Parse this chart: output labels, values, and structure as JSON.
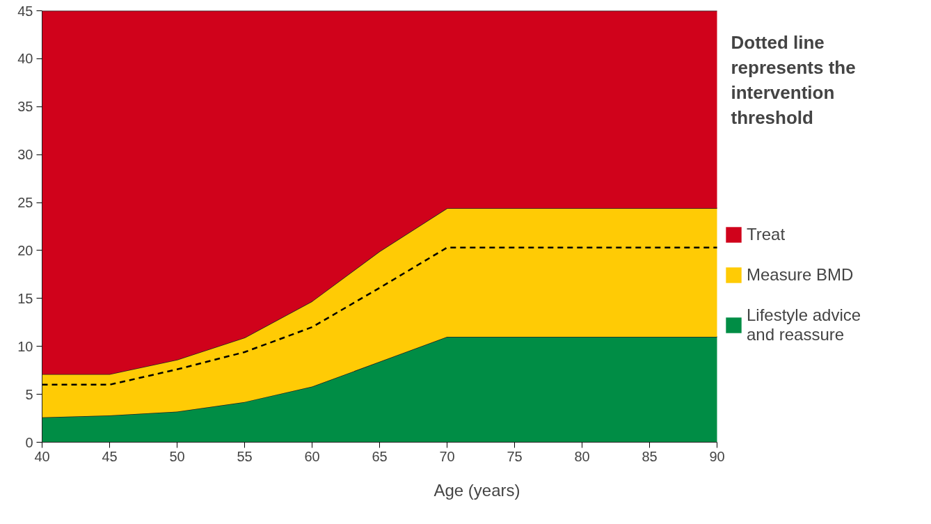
{
  "chart_data": {
    "type": "area",
    "stacked": true,
    "xlabel": "Age (years)",
    "x": [
      40,
      45,
      50,
      55,
      60,
      65,
      70,
      75,
      80,
      85,
      90
    ],
    "series": [
      {
        "name": "Lifestyle advice and reassure",
        "color": "#008d45",
        "values": [
          2.6,
          2.8,
          3.2,
          4.2,
          5.8,
          8.4,
          11.0,
          11.0,
          11.0,
          11.0,
          11.0
        ]
      },
      {
        "name": "Measure BMD",
        "color": "#ffcb05",
        "values": [
          4.5,
          4.3,
          5.4,
          6.7,
          8.9,
          11.5,
          13.4,
          13.4,
          13.4,
          13.4,
          13.4
        ]
      },
      {
        "name": "Treat",
        "color": "#d0021b",
        "values": [
          37.9,
          37.9,
          36.4,
          34.1,
          30.3,
          25.1,
          20.6,
          20.6,
          20.6,
          20.6,
          20.6
        ]
      },
      {
        "type": "line",
        "color": "#000000",
        "line_style": "dashed",
        "values": [
          6.0,
          6.0,
          7.6,
          9.4,
          12.0,
          16.1,
          20.3,
          20.3,
          20.3,
          20.3,
          20.3
        ]
      }
    ],
    "annotations": [
      "Dotted line represents the intervention threshold"
    ],
    "xlim": [
      40,
      90
    ],
    "ylim": [
      0,
      45
    ],
    "xticks": [
      40,
      45,
      50,
      55,
      60,
      65,
      70,
      75,
      80,
      85,
      90
    ],
    "yticks": [
      0,
      5,
      10,
      15,
      20,
      25,
      30,
      35,
      40,
      45
    ],
    "grid": false,
    "legend": "right"
  }
}
